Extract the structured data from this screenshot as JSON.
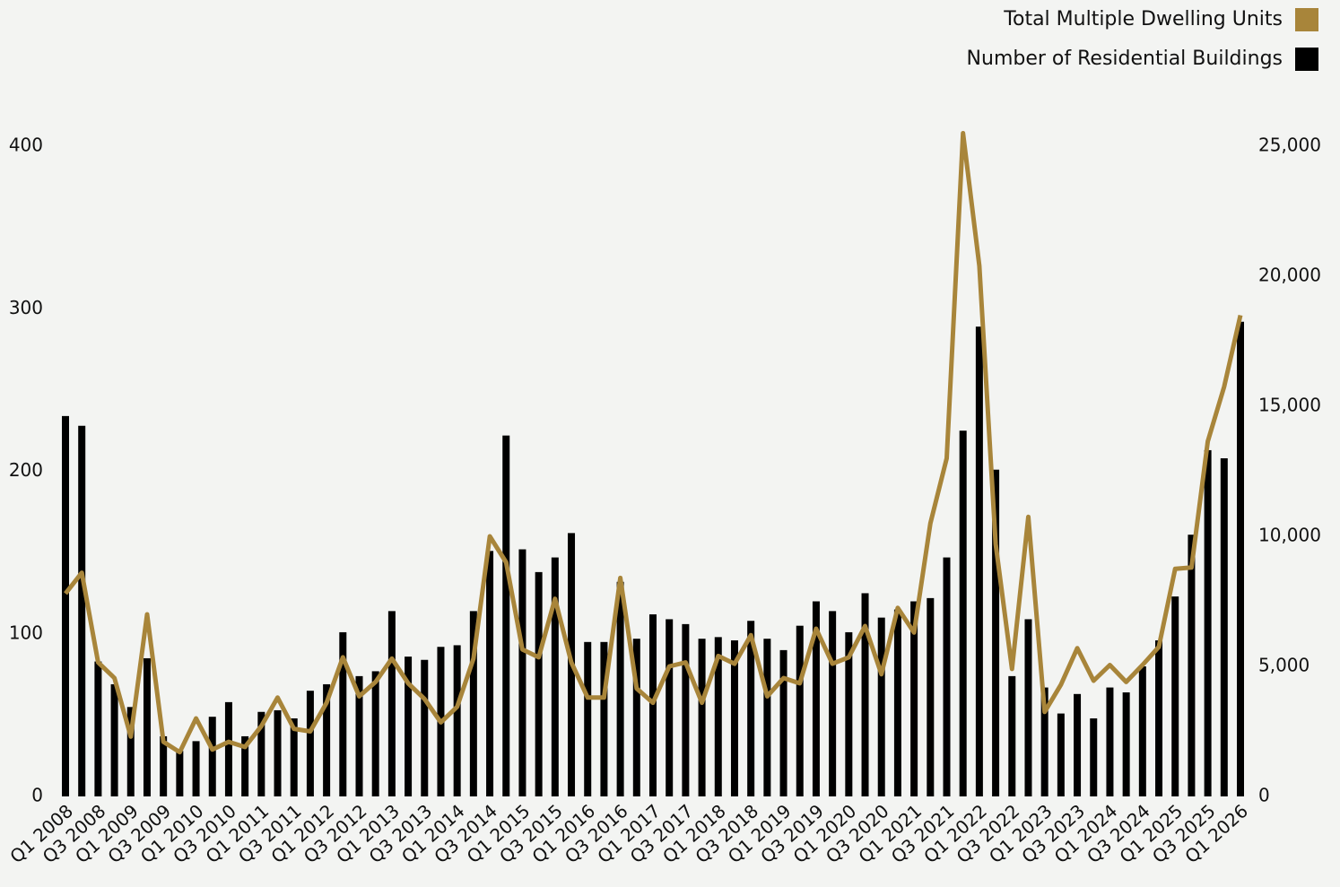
{
  "chart_data": {
    "type": "bar",
    "legend": "top-right",
    "categories": [
      "Q1 2008",
      null,
      "Q3 2008",
      null,
      "Q1 2009",
      null,
      "Q3 2009",
      null,
      "Q1 2010",
      null,
      "Q3 2010",
      null,
      "Q1 2011",
      null,
      "Q3 2011",
      null,
      "Q1 2012",
      null,
      "Q3 2012",
      null,
      "Q1 2013",
      null,
      "Q3 2013",
      null,
      "Q1 2014",
      null,
      "Q3 2014",
      null,
      "Q1 2015",
      null,
      "Q3 2015",
      null,
      "Q1 2016",
      null,
      "Q3 2016",
      null,
      "Q1 2017",
      null,
      "Q3 2017",
      null,
      "Q1 2018",
      null,
      "Q3 2018",
      null,
      "Q1 2019",
      null,
      "Q3 2019",
      null,
      "Q1 2020",
      null,
      "Q3 2020",
      null,
      "Q1 2021",
      null,
      "Q3 2021",
      null,
      "Q1 2022",
      null,
      "Q3 2022",
      null,
      "Q1 2023",
      null,
      "Q3 2023",
      null,
      "Q1 2024",
      null,
      "Q3 2024",
      null,
      "Q1 2025",
      null,
      "Q3 2025",
      null,
      "Q1 2026"
    ],
    "series": [
      {
        "name": "Total Multiple Dwelling Units",
        "color": "#a8853a",
        "type": "line",
        "axis": "y2",
        "values": [
          7800,
          8600,
          5150,
          4550,
          2300,
          7000,
          2100,
          1700,
          3000,
          1800,
          2100,
          1900,
          2700,
          3800,
          2600,
          2500,
          3600,
          5350,
          3850,
          4400,
          5300,
          4350,
          3750,
          2850,
          3450,
          5300,
          10000,
          9000,
          5650,
          5350,
          7600,
          5150,
          3800,
          3800,
          8400,
          4150,
          3600,
          5000,
          5150,
          3600,
          5400,
          5100,
          6200,
          3850,
          4550,
          4350,
          6450,
          5100,
          5350,
          6550,
          4700,
          7250,
          6300,
          10500,
          13000,
          25500,
          20400,
          9700,
          4900,
          10750,
          3250,
          4300,
          5700,
          4450,
          5050,
          4400,
          5050,
          5750,
          8750,
          8800,
          13650,
          15750,
          18500
        ]
      },
      {
        "name": "Number of Residential Buildings",
        "color": "#000000",
        "type": "bar",
        "values": [
          234,
          228,
          83,
          69,
          55,
          85,
          37,
          28,
          34,
          49,
          58,
          37,
          52,
          53,
          48,
          65,
          69,
          101,
          74,
          77,
          114,
          86,
          84,
          92,
          93,
          114,
          151,
          222,
          152,
          138,
          147,
          162,
          95,
          95,
          132,
          97,
          112,
          109,
          106,
          97,
          98,
          96,
          108,
          97,
          90,
          105,
          120,
          114,
          101,
          125,
          110,
          115,
          120,
          122,
          147,
          225,
          289,
          201,
          74,
          109,
          67,
          51,
          63,
          48,
          67,
          64,
          80,
          96,
          123,
          161,
          213,
          208,
          292
        ]
      }
    ],
    "ylim": [
      0,
      400
    ],
    "yticks": [
      0,
      100,
      200,
      300,
      400
    ],
    "y2lim": [
      0,
      25000
    ],
    "y2ticks": [
      0,
      {
        "value": 5000,
        "label": "5,000"
      },
      {
        "value": 10000,
        "label": "10,000"
      },
      {
        "value": 15000,
        "label": "15,000"
      },
      {
        "value": 20000,
        "label": "20,000"
      },
      {
        "value": 25000,
        "label": "25,000"
      }
    ]
  }
}
